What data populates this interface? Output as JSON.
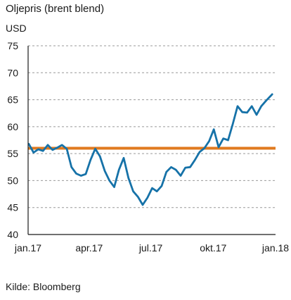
{
  "title": "Oljepris (brent blend)",
  "unit": "USD",
  "source": "Kilde: Bloomberg",
  "colors": {
    "series": "#1672a8",
    "reference": "#e07a1f",
    "axis": "#1a1a1a",
    "grid": "#999999"
  },
  "chart_data": {
    "type": "line",
    "title": "Oljepris (brent blend)",
    "ylabel": "USD",
    "xlabel": "",
    "ylim": [
      40,
      75
    ],
    "yticks": [
      40,
      45,
      50,
      55,
      60,
      65,
      70,
      75
    ],
    "xticks": [
      "jan.17",
      "apr.17",
      "jul.17",
      "okt.17",
      "jan.18"
    ],
    "grid": "horizontal-dashed",
    "series": [
      {
        "x": [
          "2017-01-02",
          "2017-01-09",
          "2017-01-16",
          "2017-01-23",
          "2017-01-30",
          "2017-02-06",
          "2017-02-13",
          "2017-02-20",
          "2017-02-27",
          "2017-03-06",
          "2017-03-13",
          "2017-03-20",
          "2017-03-27",
          "2017-04-03",
          "2017-04-10",
          "2017-04-17",
          "2017-04-24",
          "2017-05-01",
          "2017-05-08",
          "2017-05-15",
          "2017-05-22",
          "2017-05-29",
          "2017-06-05",
          "2017-06-12",
          "2017-06-19",
          "2017-06-26",
          "2017-07-03",
          "2017-07-10",
          "2017-07-17",
          "2017-07-24",
          "2017-07-31",
          "2017-08-07",
          "2017-08-14",
          "2017-08-21",
          "2017-08-28",
          "2017-09-04",
          "2017-09-11",
          "2017-09-18",
          "2017-09-25",
          "2017-10-02",
          "2017-10-09",
          "2017-10-16",
          "2017-10-23",
          "2017-10-30",
          "2017-11-06",
          "2017-11-13",
          "2017-11-20",
          "2017-11-27",
          "2017-12-04",
          "2017-12-11",
          "2017-12-18",
          "2017-12-27"
        ],
        "values": [
          56.8,
          55.2,
          55.8,
          55.5,
          56.6,
          55.7,
          56.1,
          56.6,
          55.9,
          52.5,
          51.3,
          50.9,
          51.2,
          53.8,
          55.9,
          54.5,
          51.8,
          50.0,
          48.8,
          52.0,
          54.2,
          50.5,
          48.0,
          47.0,
          45.5,
          46.8,
          48.6,
          48.0,
          49.0,
          51.6,
          52.5,
          52.0,
          50.9,
          52.4,
          52.5,
          53.8,
          55.3,
          56.0,
          57.3,
          59.5,
          56.2,
          57.8,
          57.5,
          60.5,
          63.8,
          62.7,
          62.6,
          63.8,
          62.2,
          63.8,
          64.8,
          66.0
        ]
      },
      {
        "x": [
          "2017-01-01",
          "2018-01-01"
        ],
        "values": [
          56,
          56
        ]
      }
    ]
  }
}
